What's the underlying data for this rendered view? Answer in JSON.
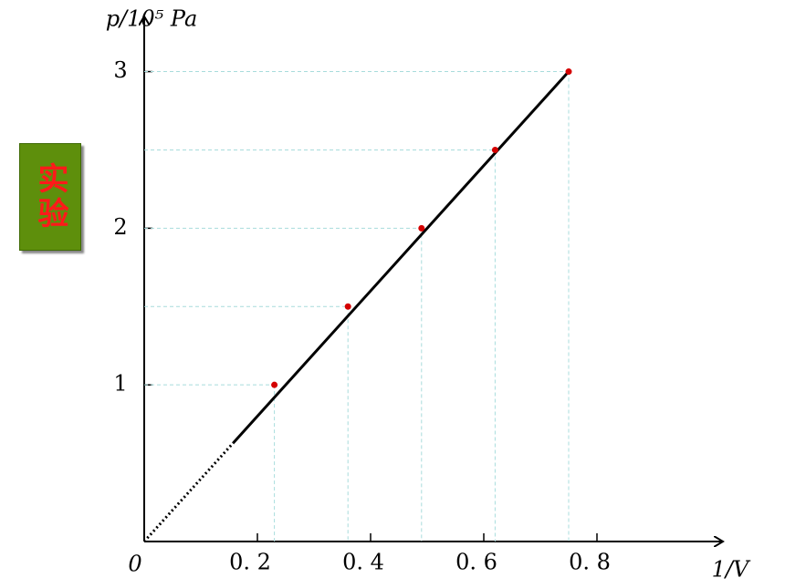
{
  "chart_data": {
    "type": "scatter",
    "x_label": "1/V",
    "y_label": "p/10⁵ Pa",
    "origin_label": "0",
    "annotation": "实验",
    "x": [
      0.23,
      0.36,
      0.49,
      0.62,
      0.75
    ],
    "values": [
      1,
      1.5,
      2,
      2.5,
      3
    ],
    "color": "#d40000",
    "line_color": "#000000",
    "guide_color": "#a8dcdc",
    "xlim": [
      0,
      1
    ],
    "ylim": [
      0,
      3.3
    ],
    "xticks": [
      {
        "value": 0.2,
        "label": "0. 2"
      },
      {
        "value": 0.4,
        "label": "0. 4"
      },
      {
        "value": 0.6,
        "label": "0. 6"
      },
      {
        "value": 0.8,
        "label": "0. 8"
      }
    ],
    "yticks": [
      1,
      2,
      3
    ],
    "guides": true,
    "fit_line": true
  }
}
